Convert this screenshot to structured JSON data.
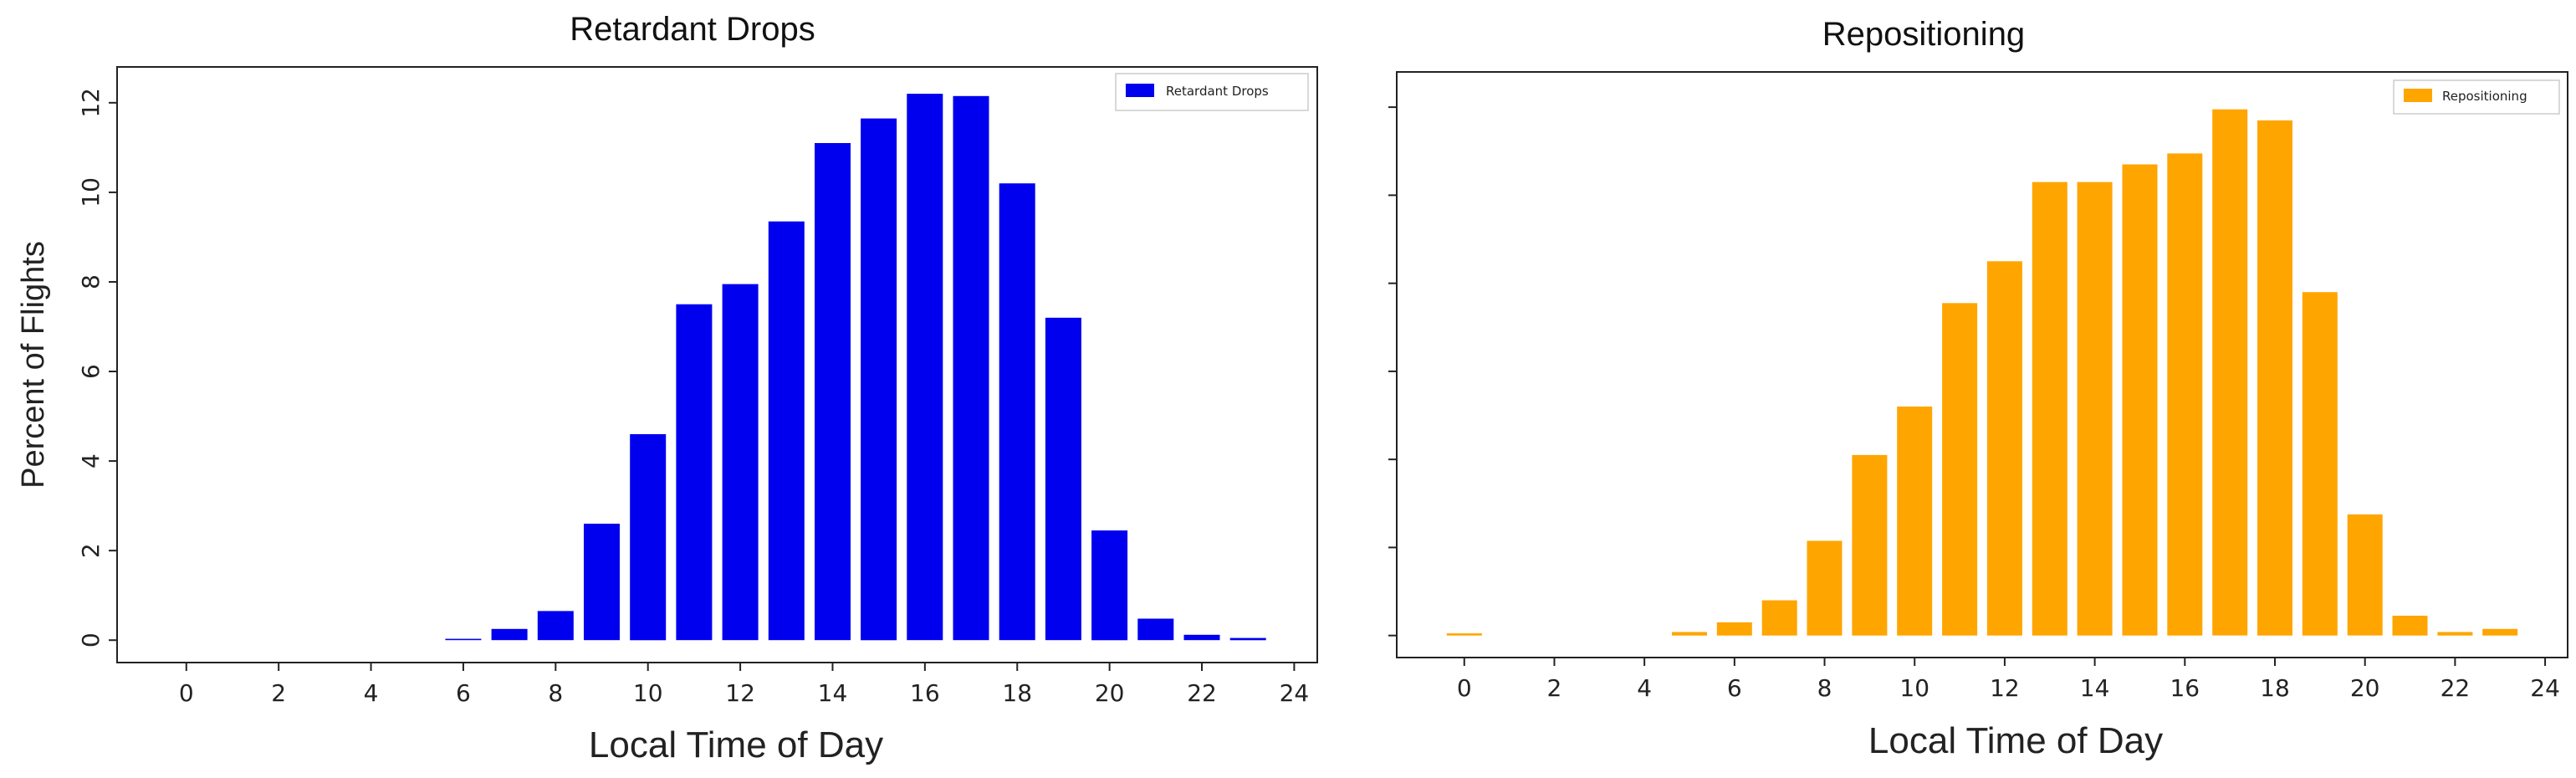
{
  "colors": {
    "retardant": "#0000ee",
    "repositioning": "#ffa500"
  },
  "chart_data": [
    {
      "type": "bar",
      "title": "Retardant Drops",
      "xlabel": "Local Time of Day",
      "ylabel": "Percent of Flights",
      "xlim": [
        -1.5,
        24.5
      ],
      "ylim": [
        -0.5,
        12.8
      ],
      "x_ticks": [
        0,
        2,
        4,
        6,
        8,
        10,
        12,
        14,
        16,
        18,
        20,
        22,
        24
      ],
      "y_ticks": [
        0,
        2,
        4,
        6,
        8,
        10,
        12
      ],
      "legend": {
        "label": "Retardant Drops",
        "position": "top-right"
      },
      "grid": false,
      "series": [
        {
          "name": "Retardant Drops",
          "color": "#0000ee",
          "x": [
            0,
            1,
            2,
            3,
            4,
            5,
            6,
            7,
            8,
            9,
            10,
            11,
            12,
            13,
            14,
            15,
            16,
            17,
            18,
            19,
            20,
            21,
            22,
            23
          ],
          "values": [
            0,
            0,
            0,
            0,
            0,
            0,
            0.03,
            0.25,
            0.65,
            2.6,
            4.6,
            7.5,
            7.95,
            9.35,
            11.1,
            11.65,
            12.2,
            12.15,
            10.2,
            7.2,
            2.45,
            0.48,
            0.12,
            0.05
          ]
        }
      ]
    },
    {
      "type": "bar",
      "title": "Repositioning",
      "xlabel": "Local Time of Day",
      "ylabel": "",
      "xlim": [
        -1.5,
        24.5
      ],
      "ylim": [
        -0.5,
        12.8
      ],
      "x_ticks": [
        0,
        2,
        4,
        6,
        8,
        10,
        12,
        14,
        16,
        18,
        20,
        22,
        24
      ],
      "y_ticks": [
        0,
        2,
        4,
        6,
        8,
        10,
        12
      ],
      "legend": {
        "label": "Repositioning",
        "position": "top-right"
      },
      "grid": false,
      "series": [
        {
          "name": "Repositioning",
          "color": "#ffa500",
          "x": [
            0,
            1,
            2,
            3,
            4,
            5,
            6,
            7,
            8,
            9,
            10,
            11,
            12,
            13,
            14,
            15,
            16,
            17,
            18,
            19,
            20,
            21,
            22,
            23
          ],
          "values": [
            0.05,
            0,
            0,
            0,
            0,
            0.08,
            0.3,
            0.8,
            2.15,
            4.1,
            5.2,
            7.55,
            8.5,
            10.3,
            10.3,
            10.7,
            10.95,
            11.95,
            11.7,
            7.8,
            2.75,
            0.45,
            0.08,
            0.15
          ]
        }
      ]
    }
  ]
}
